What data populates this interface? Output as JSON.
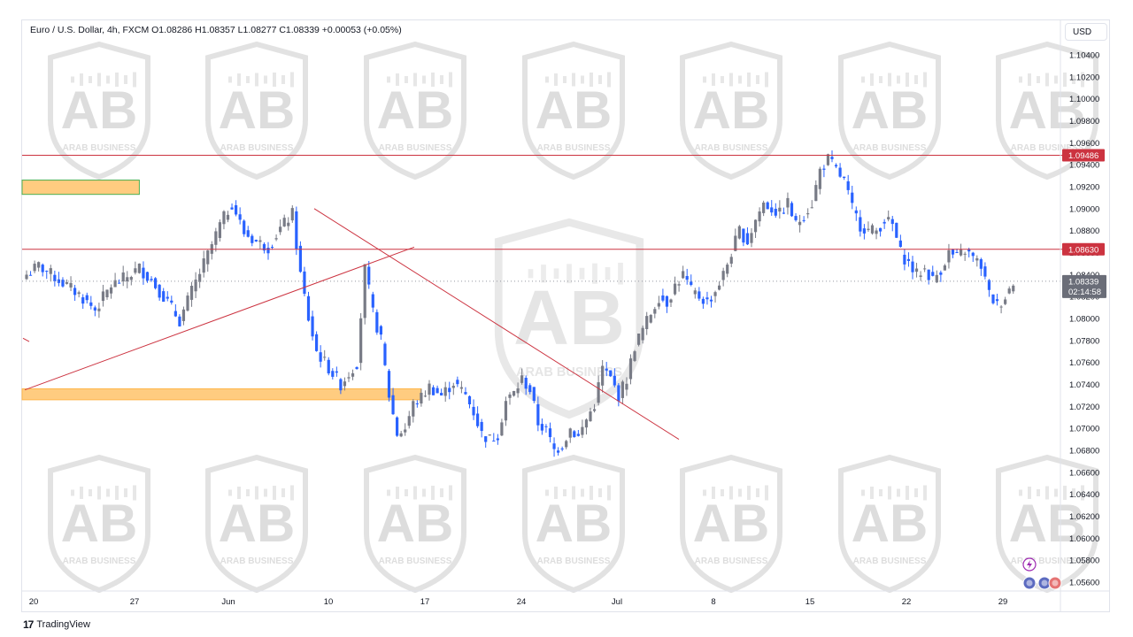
{
  "header": {
    "symbol": "Euro / U.S. Dollar, 4h, FXCM",
    "ohlc": "O1.08286 H1.08357 L1.08277 C1.08339 +0.00053 (+0.05%)"
  },
  "currency_label": "USD",
  "brand": {
    "logo": "17",
    "name": "TradingView"
  },
  "watermark": {
    "letters": "AB",
    "caption": "ARAB BUSINESS"
  },
  "colors": {
    "up": "#787b86",
    "down": "#2962ff",
    "resistance": "#cc3340",
    "zone_fill": "#ffcc80",
    "zone_border": "#4caf50",
    "last_price_tag": "#6a6d78"
  },
  "chart_data": {
    "type": "candlestick",
    "title": "Euro / U.S. Dollar, 4h, FXCM",
    "ylim": [
      1.055,
      1.106
    ],
    "y_ticks": [
      "1.10400",
      "1.10200",
      "1.10000",
      "1.09800",
      "1.09600",
      "1.09400",
      "1.09200",
      "1.09000",
      "1.08800",
      "1.08600",
      "1.08400",
      "1.08200",
      "1.08000",
      "1.07800",
      "1.07600",
      "1.07400",
      "1.07200",
      "1.07000",
      "1.06800",
      "1.06600",
      "1.06400",
      "1.06200",
      "1.06000",
      "1.05800",
      "1.05600"
    ],
    "x_ticks": [
      "20",
      "27",
      "Jun",
      "10",
      "17",
      "24",
      "Jul",
      "8",
      "15",
      "22",
      "29"
    ],
    "horizontal_levels": [
      {
        "price": 1.09486,
        "label": "1.09486"
      },
      {
        "price": 1.0863,
        "label": "1.08630"
      }
    ],
    "last_price": {
      "price": 1.08339,
      "label": "1.08339",
      "countdown": "02:14:58"
    },
    "zones": [
      {
        "from": "20",
        "to_bar": 28,
        "low": 1.0913,
        "high": 1.0926
      },
      {
        "from": "20",
        "to_bar": 98,
        "low": 1.0726,
        "high": 1.0736
      }
    ],
    "trendlines": [
      {
        "from": [
          "20",
          1.0735
        ],
        "to": [
          "17",
          1.0865
        ]
      },
      {
        "from": [
          "10",
          1.09
        ],
        "to": [
          "Jul+",
          1.069
        ]
      }
    ],
    "series_anchors": [
      [
        0,
        1.084
      ],
      [
        3,
        1.0848
      ],
      [
        8,
        1.0835
      ],
      [
        13,
        1.0822
      ],
      [
        17,
        1.0808
      ],
      [
        21,
        1.083
      ],
      [
        25,
        1.0838
      ],
      [
        28,
        1.0846
      ],
      [
        31,
        1.0835
      ],
      [
        35,
        1.0815
      ],
      [
        38,
        1.0798
      ],
      [
        41,
        1.0825
      ],
      [
        45,
        1.0858
      ],
      [
        48,
        1.0885
      ],
      [
        51,
        1.0905
      ],
      [
        54,
        1.0878
      ],
      [
        57,
        1.087
      ],
      [
        60,
        1.0865
      ],
      [
        63,
        1.0882
      ],
      [
        66,
        1.0895
      ],
      [
        68,
        1.084
      ],
      [
        70,
        1.08
      ],
      [
        72,
        1.077
      ],
      [
        75,
        1.0755
      ],
      [
        78,
        1.074
      ],
      [
        80,
        1.075
      ],
      [
        82,
        1.076
      ],
      [
        84,
        1.0845
      ],
      [
        86,
        1.0805
      ],
      [
        88,
        1.078
      ],
      [
        90,
        1.073
      ],
      [
        92,
        1.0695
      ],
      [
        94,
        1.07
      ],
      [
        96,
        1.0722
      ],
      [
        98,
        1.0728
      ],
      [
        100,
        1.0738
      ],
      [
        103,
        1.073
      ],
      [
        106,
        1.0742
      ],
      [
        109,
        1.073
      ],
      [
        111,
        1.0715
      ],
      [
        113,
        1.0695
      ],
      [
        115,
        1.069
      ],
      [
        117,
        1.0695
      ],
      [
        119,
        1.0725
      ],
      [
        121,
        1.0732
      ],
      [
        123,
        1.0745
      ],
      [
        125,
        1.0735
      ],
      [
        127,
        1.0705
      ],
      [
        129,
        1.0698
      ],
      [
        131,
        1.068
      ],
      [
        133,
        1.0685
      ],
      [
        135,
        1.07
      ],
      [
        137,
        1.0692
      ],
      [
        139,
        1.0708
      ],
      [
        141,
        1.0722
      ],
      [
        143,
        1.0755
      ],
      [
        145,
        1.0745
      ],
      [
        147,
        1.073
      ],
      [
        149,
        1.0745
      ],
      [
        151,
        1.0775
      ],
      [
        153,
        1.079
      ],
      [
        155,
        1.0805
      ],
      [
        157,
        1.082
      ],
      [
        159,
        1.0815
      ],
      [
        161,
        1.083
      ],
      [
        163,
        1.084
      ],
      [
        165,
        1.0825
      ],
      [
        167,
        1.082
      ],
      [
        169,
        1.0815
      ],
      [
        171,
        1.0825
      ],
      [
        173,
        1.084
      ],
      [
        175,
        1.086
      ],
      [
        177,
        1.088
      ],
      [
        179,
        1.087
      ],
      [
        181,
        1.089
      ],
      [
        183,
        1.0905
      ],
      [
        185,
        1.09
      ],
      [
        187,
        1.0895
      ],
      [
        189,
        1.0905
      ],
      [
        191,
        1.0885
      ],
      [
        193,
        1.0895
      ],
      [
        195,
        1.0905
      ],
      [
        197,
        1.0935
      ],
      [
        199,
        1.0945
      ],
      [
        201,
        1.0935
      ],
      [
        203,
        1.0925
      ],
      [
        205,
        1.09
      ],
      [
        207,
        1.0885
      ],
      [
        209,
        1.088
      ],
      [
        211,
        1.088
      ],
      [
        213,
        1.089
      ],
      [
        215,
        1.0885
      ],
      [
        217,
        1.086
      ],
      [
        219,
        1.085
      ],
      [
        221,
        1.084
      ],
      [
        223,
        1.0845
      ],
      [
        225,
        1.0835
      ],
      [
        227,
        1.0845
      ],
      [
        229,
        1.086
      ],
      [
        231,
        1.0855
      ],
      [
        233,
        1.0862
      ],
      [
        235,
        1.0855
      ],
      [
        237,
        1.0848
      ],
      [
        239,
        1.0822
      ],
      [
        241,
        1.0812
      ],
      [
        243,
        1.082
      ],
      [
        245,
        1.0834
      ]
    ]
  }
}
